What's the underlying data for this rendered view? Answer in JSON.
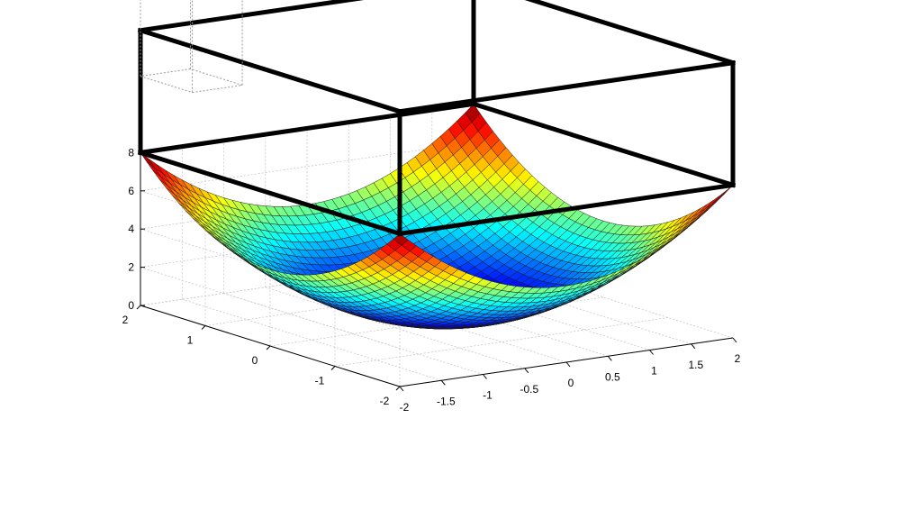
{
  "chart_data": {
    "type": "surface",
    "function": "z = x^2 + y^2",
    "x_range": [
      -2,
      2
    ],
    "y_range": [
      -2,
      2
    ],
    "grid_points": 41,
    "zlim": [
      0,
      8
    ],
    "colormap": "jet",
    "grid": true,
    "x_ticks": [
      "-2",
      "-1.5",
      "-1",
      "-0.5",
      "0",
      "0.5",
      "1",
      "1.5",
      "2"
    ],
    "y_ticks": [
      "-2",
      "-1",
      "0",
      "1",
      "2"
    ],
    "z_ticks": [
      "0",
      "2",
      "4",
      "6",
      "8"
    ],
    "annotations": [
      {
        "type": "box",
        "style": "solid",
        "color": "#000000",
        "x_range": [
          -2,
          2
        ],
        "y_range": [
          -2,
          2
        ],
        "z_range": [
          8,
          14.4
        ]
      },
      {
        "type": "box",
        "style": "dotted",
        "color": "#999999",
        "x_range": [
          -2,
          -1.4
        ],
        "y_range": [
          1.2,
          2
        ],
        "z_range": [
          12,
          20
        ]
      }
    ]
  }
}
